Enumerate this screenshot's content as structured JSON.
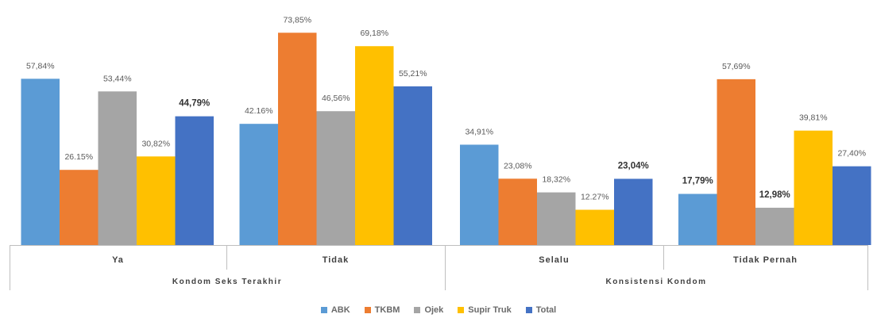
{
  "chart_data": {
    "type": "bar",
    "groups": [
      {
        "label": "Kondom Seks Terakhir",
        "categories": [
          "Ya",
          "Tidak"
        ]
      },
      {
        "label": "Konsistensi Kondom",
        "categories": [
          "Selalu",
          "Tidak Pernah"
        ]
      }
    ],
    "categories": [
      "Ya",
      "Tidak",
      "Selalu",
      "Tidak Pernah"
    ],
    "series": [
      {
        "name": "ABK",
        "color": "#5B9BD5",
        "values": [
          57.84,
          42.16,
          34.91,
          17.79
        ],
        "labels": [
          "57,84%",
          "42.16%",
          "34,91%",
          "17,79%"
        ]
      },
      {
        "name": "TKBM",
        "color": "#ED7D31",
        "values": [
          26.15,
          73.85,
          23.08,
          57.69
        ],
        "labels": [
          "26.15%",
          "73,85%",
          "23,08%",
          "57,69%"
        ]
      },
      {
        "name": "Ojek",
        "color": "#A5A5A5",
        "values": [
          53.44,
          46.56,
          18.32,
          12.98
        ],
        "labels": [
          "53,44%",
          "46,56%",
          "18,32%",
          "12,98%"
        ]
      },
      {
        "name": "Supir Truk",
        "color": "#FFC000",
        "values": [
          30.82,
          69.18,
          12.27,
          39.81
        ],
        "labels": [
          "30,82%",
          "69,18%",
          "12.27%",
          "39,81%"
        ]
      },
      {
        "name": "Total",
        "color": "#4472C4",
        "values": [
          44.79,
          55.21,
          23.04,
          27.4
        ],
        "labels": [
          "44,79%",
          "55,21%",
          "23,04%",
          "27,40%"
        ]
      }
    ],
    "bold_labels": [
      {
        "series": 4,
        "category": 0
      },
      {
        "series": 4,
        "category": 2
      },
      {
        "series": 0,
        "category": 3
      },
      {
        "series": 2,
        "category": 3
      }
    ],
    "ylim": [
      0,
      80
    ],
    "grid": false,
    "legend_position": "bottom",
    "title": "",
    "xlabel": "",
    "ylabel": ""
  }
}
